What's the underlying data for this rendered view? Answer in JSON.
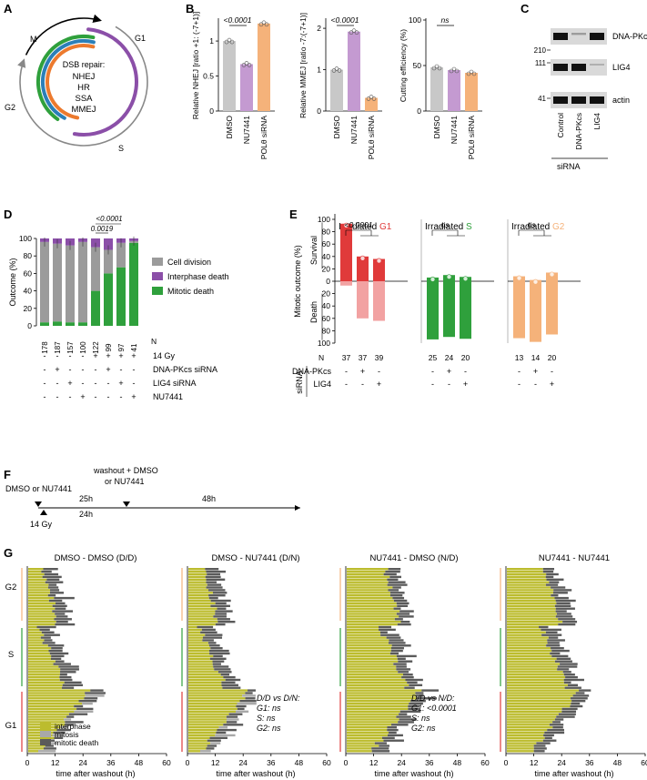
{
  "panels": {
    "A": {
      "label": "A",
      "center_title": "DSB repair:",
      "pathways": [
        {
          "name": "NHEJ",
          "color": "#8b4fa8"
        },
        {
          "name": "HR",
          "color": "#2fa03c"
        },
        {
          "name": "SSA",
          "color": "#2b7fb8"
        },
        {
          "name": "MMEJ",
          "color": "#ec7a2e"
        }
      ],
      "phases": {
        "m": "M",
        "g1": "G1",
        "s": "S",
        "g2": "G2"
      }
    },
    "B": {
      "label": "B",
      "colors": {
        "dmso": "#c8c8c8",
        "nu": "#c49ad1",
        "pol": "#f5b27a"
      },
      "categories": [
        "DMSO",
        "NU7441",
        "POLθ siRNA"
      ],
      "charts": [
        {
          "ylabel": "Relative NHEJ [ratio +1: (-7+1)]",
          "values": [
            1.0,
            0.67,
            1.25
          ],
          "ylim": [
            0,
            1.3
          ],
          "ticks": [
            "0",
            "0.5",
            "1"
          ],
          "annotation": "<0.0001"
        },
        {
          "ylabel": "Relative MMEJ [ratio -7:(-7+1)]",
          "values": [
            1.0,
            1.92,
            0.32
          ],
          "ylim": [
            0,
            2.2
          ],
          "ticks": [
            "0",
            "1",
            "2"
          ],
          "annotation": "<0.0001"
        },
        {
          "ylabel": "Cutting efficiency (%)",
          "values": [
            48,
            45,
            42
          ],
          "ylim": [
            0,
            100
          ],
          "ticks": [
            "0",
            "50",
            "100"
          ],
          "annotation": "ns"
        }
      ]
    },
    "C": {
      "label": "C",
      "bands": [
        "DNA-PKcs",
        "LIG4",
        "actin"
      ],
      "markers": [
        "210",
        "111",
        "41"
      ],
      "lanes": [
        "Control",
        "DNA-PKcs",
        "LIG4"
      ],
      "footer": "siRNA"
    },
    "D": {
      "label": "D",
      "ylabel": "Outcome (%)",
      "yticks": [
        "0",
        "20",
        "40",
        "60",
        "80",
        "100"
      ],
      "legend": [
        "Cell division",
        "Interphase death",
        "Mitotic death"
      ],
      "colors": {
        "division": "#9b9b9b",
        "interphase": "#8b4fa8",
        "mitotic": "#2fa03c"
      },
      "n_values": [
        "178",
        "187",
        "157",
        "100",
        "122",
        "99",
        "97",
        "41"
      ],
      "n_label": "N",
      "rows": [
        {
          "label": "14 Gy",
          "signs": [
            "-",
            "-",
            "-",
            "-",
            "+",
            "+",
            "+",
            "+"
          ]
        },
        {
          "label": "DNA-PKcs siRNA",
          "signs": [
            "-",
            "+",
            "-",
            "-",
            "-",
            "+",
            "-",
            "-"
          ]
        },
        {
          "label": "LIG4 siRNA",
          "signs": [
            "-",
            "-",
            "+",
            "-",
            "-",
            "-",
            "+",
            "-"
          ]
        },
        {
          "label": "NU7441",
          "signs": [
            "-",
            "-",
            "-",
            "+",
            "-",
            "-",
            "-",
            "+"
          ]
        }
      ],
      "pvals": [
        "<0.0001",
        "0.0019"
      ],
      "chart_data": {
        "type": "bar",
        "categories": [
          "1",
          "2",
          "3",
          "4",
          "5",
          "6",
          "7",
          "8"
        ],
        "series": [
          {
            "name": "Mitotic death",
            "values": [
              4,
              5,
              4,
              4,
              40,
              60,
              67,
              95
            ]
          },
          {
            "name": "Cell division",
            "values": [
              92,
              89,
              88,
              92,
              50,
              27,
              28,
              2
            ]
          },
          {
            "name": "Interphase death",
            "values": [
              4,
              6,
              8,
              4,
              10,
              13,
              5,
              3
            ]
          }
        ],
        "ylabel": "Outcome (%)",
        "ylim": [
          0,
          100
        ]
      }
    },
    "E": {
      "label": "E",
      "ylabel": "Mitotic outcome (%)",
      "survival": "Survival",
      "death": "Death",
      "yticks": [
        "100",
        "80",
        "60",
        "40",
        "20",
        "0",
        "20",
        "40",
        "60",
        "80",
        "100"
      ],
      "siRNA": "siRNA",
      "n_label": "N",
      "row_labels": [
        "DNA-PKcs",
        "LIG4"
      ],
      "subpanels": [
        {
          "title_prefix": "Irradiated ",
          "phase": "G1",
          "color": "#e03a3a",
          "light": "#f2a2a2",
          "survival": [
            93,
            40,
            36
          ],
          "death": [
            7,
            60,
            64
          ],
          "n": [
            "37",
            "37",
            "39"
          ],
          "pval": "<0.0001"
        },
        {
          "title_prefix": "Irradiated ",
          "phase": "S",
          "color": "#2fa03c",
          "light": "#2fa03c",
          "survival": [
            6,
            10,
            7
          ],
          "death": [
            94,
            90,
            93
          ],
          "n": [
            "25",
            "24",
            "20"
          ],
          "pval": "ns"
        },
        {
          "title_prefix": "Irradiated ",
          "phase": "G2",
          "color": "#f5b27a",
          "light": "#f5b27a",
          "survival": [
            8,
            2,
            14
          ],
          "death": [
            92,
            98,
            86
          ],
          "n": [
            "13",
            "14",
            "20"
          ],
          "pval": "ns"
        }
      ],
      "signs": [
        [
          "-",
          "+",
          "-"
        ],
        [
          "-",
          "-",
          "+"
        ]
      ]
    },
    "F": {
      "label": "F",
      "start": "DMSO or NU7441",
      "washout": "washout + DMSO",
      "washout2": "or NU7441",
      "irradiation": "14 Gy",
      "t1": "25h",
      "t2": "24h",
      "t3": "48h"
    },
    "G": {
      "label": "G",
      "titles": [
        "DMSO - DMSO (D/D)",
        "DMSO - NU7441 (D/N)",
        "NU7441 - DMSO (N/D)",
        "NU7441 - NU7441"
      ],
      "xlabel": "time after washout (h)",
      "xticks": [
        "0",
        "12",
        "24",
        "36",
        "48",
        "60"
      ],
      "phase_labels": [
        "G2",
        "S",
        "G1"
      ],
      "legend": [
        "interphase",
        "mitosis",
        "mitotic death"
      ],
      "colors": {
        "interphase": "#bcbc2e",
        "mitosis": "#a8a8a8",
        "death": "#5a5a5a"
      },
      "stats": [
        {
          "title": "D/D vs D/N:",
          "g1": "G1: ns",
          "s": "S: ns",
          "g2": "G2: ns"
        },
        {
          "title": "D/D vs N/D:",
          "g1": "G1: <0.0001",
          "s": "S: ns",
          "g2": "G2: ns"
        }
      ]
    }
  }
}
